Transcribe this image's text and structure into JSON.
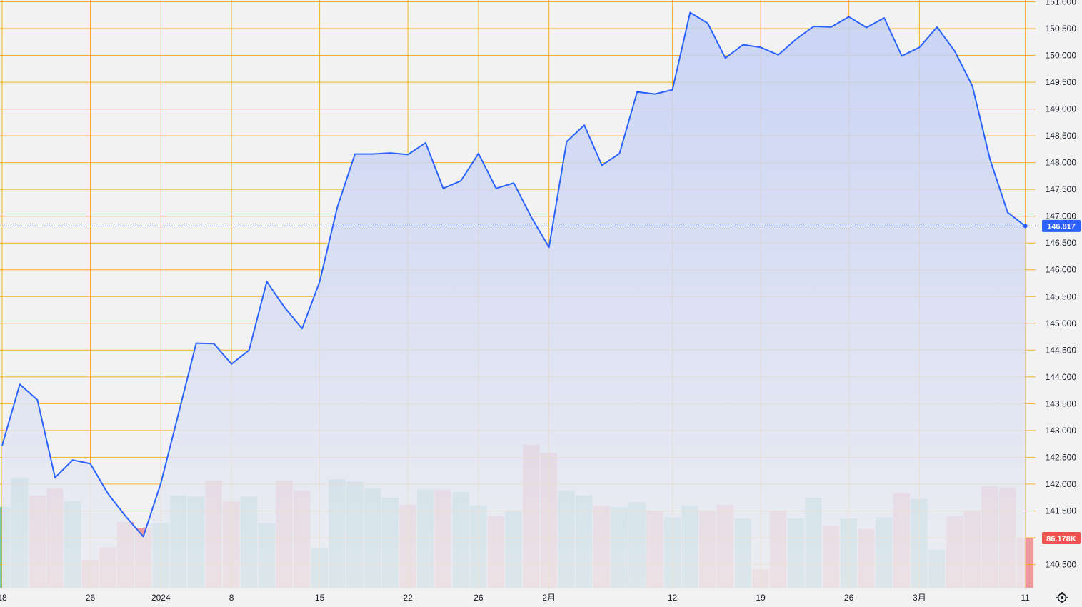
{
  "chart_data": {
    "type": "area",
    "title": "",
    "xlabel": "",
    "ylabel": "",
    "ylim": [
      140.2,
      151.0
    ],
    "grid": true,
    "y_ticks": [
      "140.500",
      "141.000",
      "141.500",
      "142.000",
      "142.500",
      "143.000",
      "143.500",
      "144.000",
      "144.500",
      "145.000",
      "145.500",
      "146.000",
      "146.500",
      "147.000",
      "147.500",
      "148.000",
      "148.500",
      "149.000",
      "149.500",
      "150.000",
      "150.500",
      "151.000"
    ],
    "x_tick_labels": [
      {
        "i": 0,
        "label": "18"
      },
      {
        "i": 5,
        "label": "26"
      },
      {
        "i": 9,
        "label": "2024"
      },
      {
        "i": 13,
        "label": "8"
      },
      {
        "i": 18,
        "label": "15"
      },
      {
        "i": 23,
        "label": "22"
      },
      {
        "i": 27,
        "label": "26"
      },
      {
        "i": 31,
        "label": "2月"
      },
      {
        "i": 38,
        "label": "12"
      },
      {
        "i": 43,
        "label": "19"
      },
      {
        "i": 48,
        "label": "26"
      },
      {
        "i": 52,
        "label": "3月"
      },
      {
        "i": 58,
        "label": "11"
      }
    ],
    "price_series": {
      "values": [
        142.72,
        143.86,
        143.57,
        142.12,
        142.45,
        142.38,
        141.82,
        141.4,
        141.02,
        142.02,
        143.32,
        144.63,
        144.62,
        144.24,
        144.5,
        145.78,
        145.3,
        144.9,
        145.78,
        147.17,
        148.16,
        148.16,
        148.18,
        148.15,
        148.37,
        147.52,
        147.66,
        148.17,
        147.52,
        147.62,
        146.98,
        146.42,
        148.39,
        148.7,
        147.95,
        148.17,
        149.32,
        149.28,
        149.36,
        150.8,
        150.6,
        149.95,
        150.2,
        150.15,
        150.01,
        150.3,
        150.54,
        150.53,
        150.72,
        150.52,
        150.7,
        149.99,
        150.15,
        150.53,
        150.08,
        149.43,
        148.06,
        147.07,
        146.817
      ]
    },
    "volume_series": {
      "values": [
        70,
        95,
        80,
        86,
        75,
        24,
        35,
        57,
        52,
        56,
        80,
        79,
        93,
        75,
        79,
        56,
        93,
        84,
        34,
        94,
        92,
        86,
        78,
        72,
        85,
        85,
        83,
        71,
        62,
        66,
        124,
        117,
        84,
        80,
        71,
        70,
        74,
        67,
        61,
        71,
        66,
        72,
        60,
        16,
        67,
        60,
        78,
        54,
        60,
        51,
        61,
        82,
        77,
        33,
        62,
        66,
        88,
        87,
        43
      ],
      "bull": [
        1,
        1,
        0,
        0,
        1,
        0,
        0,
        0,
        0,
        1,
        1,
        1,
        0,
        0,
        1,
        1,
        0,
        0,
        1,
        1,
        1,
        1,
        1,
        0,
        1,
        0,
        1,
        1,
        0,
        1,
        0,
        0,
        1,
        1,
        0,
        1,
        1,
        0,
        1,
        1,
        0,
        0,
        1,
        0,
        0,
        1,
        1,
        0,
        1,
        0,
        1,
        0,
        1,
        1,
        0,
        0,
        0,
        0,
        0
      ],
      "max": 200
    },
    "last_price": {
      "value": 146.817,
      "label": "146.817"
    },
    "last_volume": {
      "label": "86.178K"
    },
    "colors": {
      "line": "#2962ff",
      "area_top": "#c3cff5",
      "area_bottom": "#ecedf2",
      "grid": "#f7a600",
      "volume_up": "#7ec6c1",
      "volume_down": "#ef9a9a",
      "price_badge": "#2962ff",
      "volume_badge": "#ef5350",
      "background": "#f2f2f2"
    }
  },
  "axis_settings_icon": "gear-icon"
}
